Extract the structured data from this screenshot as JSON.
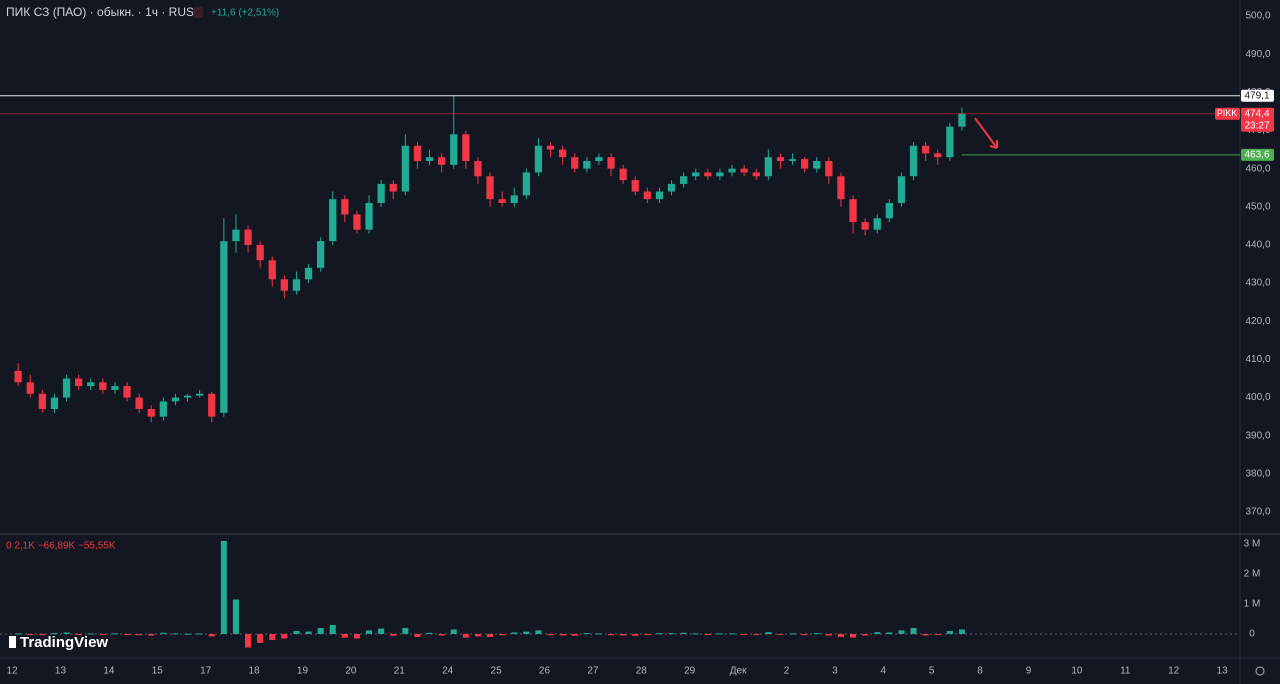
{
  "chart_data": [
    {
      "type": "candlestick",
      "title": "ПИК СЗ (ПАО) · обыкн. · 1ч · RUS",
      "change": "+11,6 (+2,51%)",
      "watermark": "TradingView",
      "symbol": "PIKK",
      "countdown": "23:27",
      "up_color": "#22ab94",
      "down_color": "#f23645",
      "x": [
        0.125,
        0.375,
        0.625,
        0.875,
        1.125,
        1.375,
        1.625,
        1.875,
        2.125,
        2.375,
        2.625,
        2.875,
        3.125,
        3.375,
        3.625,
        3.875,
        4.125,
        4.375,
        4.625,
        4.875,
        5.125,
        5.375,
        5.625,
        5.875,
        6.125,
        6.375,
        6.625,
        6.875,
        7.125,
        7.375,
        7.625,
        7.875,
        8.125,
        8.375,
        8.625,
        8.875,
        9.125,
        9.375,
        9.625,
        9.875,
        10.125,
        10.375,
        10.625,
        10.875,
        11.125,
        11.375,
        11.625,
        11.875,
        12.125,
        12.375,
        12.625,
        12.875,
        13.125,
        13.375,
        13.625,
        13.875,
        14.125,
        14.375,
        14.625,
        14.875,
        15.125,
        15.375,
        15.625,
        15.875,
        16.125,
        16.375,
        16.625,
        16.875,
        17.125,
        17.375,
        17.625,
        17.875,
        18.125,
        18.375,
        18.625,
        18.875,
        19.125,
        19.375,
        19.625
      ],
      "open": [
        407,
        404,
        401,
        397,
        400,
        405,
        403,
        404,
        402,
        403,
        400,
        397,
        395,
        399,
        400,
        400.5,
        401,
        396,
        441,
        444,
        440,
        436,
        431,
        428,
        431,
        434,
        441,
        452,
        448,
        444,
        451,
        456,
        454,
        466,
        462,
        463,
        461,
        469,
        462,
        458,
        452,
        451,
        453,
        459,
        466,
        465,
        463,
        460,
        462,
        463,
        460,
        457,
        454,
        452,
        454,
        456,
        458,
        459,
        458,
        459,
        460,
        459,
        458,
        463,
        462,
        462.5,
        460,
        462,
        458,
        452,
        446,
        444,
        447,
        451,
        458,
        466,
        464,
        463,
        471
      ],
      "high": [
        409,
        406,
        402,
        401,
        406,
        406,
        405,
        405,
        404,
        404,
        401,
        398,
        400,
        401,
        401,
        402,
        401.5,
        447,
        448,
        445,
        441,
        437,
        432,
        433,
        435,
        442,
        454,
        453,
        449,
        453,
        457,
        457,
        469,
        467,
        465,
        464,
        479.1,
        470,
        463,
        459,
        454,
        455,
        460,
        468,
        467,
        466,
        464,
        463,
        464,
        464,
        461,
        458,
        455,
        455,
        457,
        459,
        460,
        460,
        460,
        461,
        461,
        460,
        465,
        464,
        464,
        463,
        463,
        463,
        459,
        453,
        447,
        448,
        452,
        459,
        467,
        467,
        465,
        472,
        476
      ],
      "low": [
        403,
        400,
        396,
        396,
        399,
        402,
        402,
        401,
        401,
        399,
        396,
        393.5,
        394,
        398,
        399,
        400,
        393.5,
        395,
        438,
        438,
        434,
        429,
        426,
        427,
        430,
        433,
        440,
        446,
        443,
        443,
        450,
        452,
        453,
        460,
        461,
        459,
        460,
        460,
        456,
        450,
        450,
        450,
        452,
        458,
        463,
        461,
        459,
        459,
        461,
        458,
        456,
        453,
        451,
        451,
        453,
        455,
        457,
        457,
        457,
        458,
        458,
        457,
        457,
        460,
        461,
        459,
        459,
        456,
        450,
        443,
        442.5,
        443,
        446,
        450,
        457,
        462,
        461,
        462,
        470
      ],
      "close": [
        404,
        401,
        397,
        400,
        405,
        403,
        404,
        402,
        403,
        400,
        397,
        395,
        399,
        400,
        400.5,
        401,
        395,
        441,
        444,
        440,
        436,
        431,
        428,
        431,
        434,
        441,
        452,
        448,
        444,
        451,
        456,
        454,
        466,
        462,
        463,
        461,
        469,
        462,
        458,
        452,
        451,
        453,
        459,
        466,
        465,
        463,
        460,
        462,
        463,
        460,
        457,
        454,
        452,
        454,
        456,
        458,
        459,
        458,
        459,
        460,
        459,
        458,
        463,
        462,
        462.5,
        460,
        462,
        458,
        452,
        446,
        444,
        447,
        451,
        458,
        466,
        464,
        463,
        471,
        474.4
      ],
      "xlim": [
        -0.25,
        25.37
      ],
      "ylim": [
        364.5,
        504.2
      ],
      "yticks": [
        {
          "value": 370,
          "label": "370,0"
        },
        {
          "value": 380,
          "label": "380,0"
        },
        {
          "value": 390,
          "label": "390,0"
        },
        {
          "value": 400,
          "label": "400,0"
        },
        {
          "value": 410,
          "label": "410,0"
        },
        {
          "value": 420,
          "label": "420,0"
        },
        {
          "value": 430,
          "label": "430,0"
        },
        {
          "value": 440,
          "label": "440,0"
        },
        {
          "value": 450,
          "label": "450,0"
        },
        {
          "value": 460,
          "label": "460,0"
        },
        {
          "value": 470,
          "label": "470,0"
        },
        {
          "value": 480,
          "label": "480,0"
        },
        {
          "value": 490,
          "label": "490,0"
        },
        {
          "value": 500,
          "label": "500,0"
        }
      ],
      "xticks": [
        {
          "value": 0,
          "label": "12"
        },
        {
          "value": 1,
          "label": "13"
        },
        {
          "value": 2,
          "label": "14"
        },
        {
          "value": 3,
          "label": "15"
        },
        {
          "value": 4,
          "label": "17"
        },
        {
          "value": 5,
          "label": "18"
        },
        {
          "value": 6,
          "label": "19"
        },
        {
          "value": 7,
          "label": "20"
        },
        {
          "value": 8,
          "label": "21"
        },
        {
          "value": 9,
          "label": "24"
        },
        {
          "value": 10,
          "label": "25"
        },
        {
          "value": 11,
          "label": "26"
        },
        {
          "value": 12,
          "label": "27"
        },
        {
          "value": 13,
          "label": "28"
        },
        {
          "value": 14,
          "label": "29"
        },
        {
          "value": 15,
          "label": "Дек"
        },
        {
          "value": 16,
          "label": "2"
        },
        {
          "value": 17,
          "label": "3"
        },
        {
          "value": 18,
          "label": "4"
        },
        {
          "value": 19,
          "label": "5"
        },
        {
          "value": 20,
          "label": "8"
        },
        {
          "value": 21,
          "label": "9"
        },
        {
          "value": 22,
          "label": "10"
        },
        {
          "value": 23,
          "label": "11"
        },
        {
          "value": 24,
          "label": "12"
        },
        {
          "value": 25,
          "label": "13"
        }
      ],
      "levels": [
        {
          "value": 479.1,
          "label": "479,1",
          "color": "#ffffff"
        },
        {
          "value": 474.4,
          "label": "474,4",
          "color": "#f23645"
        },
        {
          "value": 463.6,
          "label": "463,6",
          "color": "#4caf50"
        }
      ]
    },
    {
      "type": "bar",
      "legend": "0 2,1K −66,89K −55,55K",
      "up_color": "#22ab94",
      "down_color": "#f23645",
      "x": [
        0.125,
        0.375,
        0.625,
        0.875,
        1.125,
        1.375,
        1.625,
        1.875,
        2.125,
        2.375,
        2.625,
        2.875,
        3.125,
        3.375,
        3.625,
        3.875,
        4.125,
        4.375,
        4.625,
        4.875,
        5.125,
        5.375,
        5.625,
        5.875,
        6.125,
        6.375,
        6.625,
        6.875,
        7.125,
        7.375,
        7.625,
        7.875,
        8.125,
        8.375,
        8.625,
        8.875,
        9.125,
        9.375,
        9.625,
        9.875,
        10.125,
        10.375,
        10.625,
        10.875,
        11.125,
        11.375,
        11.625,
        11.875,
        12.125,
        12.375,
        12.625,
        12.875,
        13.125,
        13.375,
        13.625,
        13.875,
        14.125,
        14.375,
        14.625,
        14.875,
        15.125,
        15.375,
        15.625,
        15.875,
        16.125,
        16.375,
        16.625,
        16.875,
        17.125,
        17.375,
        17.625,
        17.875,
        18.125,
        18.375,
        18.625,
        18.875,
        19.125,
        19.375,
        19.625
      ],
      "values": [
        0.02,
        -0.03,
        -0.04,
        0.03,
        0.05,
        -0.02,
        0.02,
        -0.03,
        0.02,
        -0.03,
        -0.04,
        -0.05,
        0.04,
        0.02,
        0.01,
        0.02,
        -0.08,
        3.1,
        1.15,
        -0.45,
        -0.3,
        -0.2,
        -0.15,
        0.1,
        0.08,
        0.2,
        0.3,
        -0.12,
        -0.15,
        0.12,
        0.18,
        -0.06,
        0.2,
        -0.1,
        0.04,
        -0.05,
        0.15,
        -0.12,
        -0.08,
        -0.1,
        -0.04,
        0.05,
        0.08,
        0.12,
        -0.04,
        -0.05,
        -0.06,
        0.03,
        0.02,
        -0.04,
        -0.05,
        -0.06,
        -0.03,
        0.03,
        0.03,
        0.04,
        0.02,
        -0.02,
        0.02,
        0.02,
        -0.02,
        -0.03,
        0.06,
        -0.03,
        0.02,
        -0.04,
        0.03,
        -0.05,
        -0.1,
        -0.12,
        -0.05,
        0.06,
        0.05,
        0.12,
        0.2,
        -0.05,
        -0.03,
        0.1,
        0.15
      ],
      "ylim": [
        -0.7,
        3.23
      ],
      "yticks": [
        {
          "value": 3,
          "label": "3 M"
        },
        {
          "value": 2,
          "label": "2 M"
        },
        {
          "value": 1,
          "label": "1 M"
        },
        0
      ]
    }
  ]
}
